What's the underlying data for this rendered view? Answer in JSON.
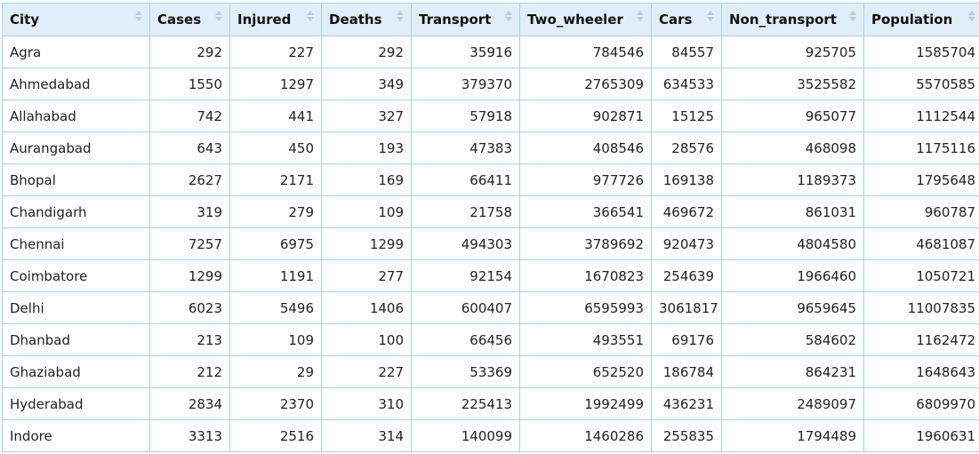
{
  "columns": [
    "City",
    "Cases",
    "Injured",
    "Deaths",
    "Transport",
    "Two_wheeler",
    "Cars",
    "Non_transport",
    "Population"
  ],
  "rows": [
    [
      "Agra",
      "292",
      "227",
      "292",
      "35916",
      "784546",
      "84557",
      "925705",
      "1585704"
    ],
    [
      "Ahmedabad",
      "1550",
      "1297",
      "349",
      "379370",
      "2765309",
      "634533",
      "3525582",
      "5570585"
    ],
    [
      "Allahabad",
      "742",
      "441",
      "327",
      "57918",
      "902871",
      "15125",
      "965077",
      "1112544"
    ],
    [
      "Aurangabad",
      "643",
      "450",
      "193",
      "47383",
      "408546",
      "28576",
      "468098",
      "1175116"
    ],
    [
      "Bhopal",
      "2627",
      "2171",
      "169",
      "66411",
      "977726",
      "169138",
      "1189373",
      "1795648"
    ],
    [
      "Chandigarh",
      "319",
      "279",
      "109",
      "21758",
      "366541",
      "469672",
      "861031",
      "960787"
    ],
    [
      "Chennai",
      "7257",
      "6975",
      "1299",
      "494303",
      "3789692",
      "920473",
      "4804580",
      "4681087"
    ],
    [
      "Coimbatore",
      "1299",
      "1191",
      "277",
      "92154",
      "1670823",
      "254639",
      "1966460",
      "1050721"
    ],
    [
      "Delhi",
      "6023",
      "5496",
      "1406",
      "600407",
      "6595993",
      "3061817",
      "9659645",
      "11007835"
    ],
    [
      "Dhanbad",
      "213",
      "109",
      "100",
      "66456",
      "493551",
      "69176",
      "584602",
      "1162472"
    ],
    [
      "Ghaziabad",
      "212",
      "29",
      "227",
      "53369",
      "652520",
      "186784",
      "864231",
      "1648643"
    ],
    [
      "Hyderabad",
      "2834",
      "2370",
      "310",
      "225413",
      "1992499",
      "436231",
      "2489097",
      "6809970"
    ],
    [
      "Indore",
      "3313",
      "2516",
      "314",
      "140099",
      "1460286",
      "255835",
      "1794489",
      "1960631"
    ]
  ],
  "sort_icon": "sort-updown-icon",
  "colors": {
    "header_bg": "#e0eef9",
    "border": "#a8d0ea",
    "sort_arrow": "#c3c9cf"
  }
}
